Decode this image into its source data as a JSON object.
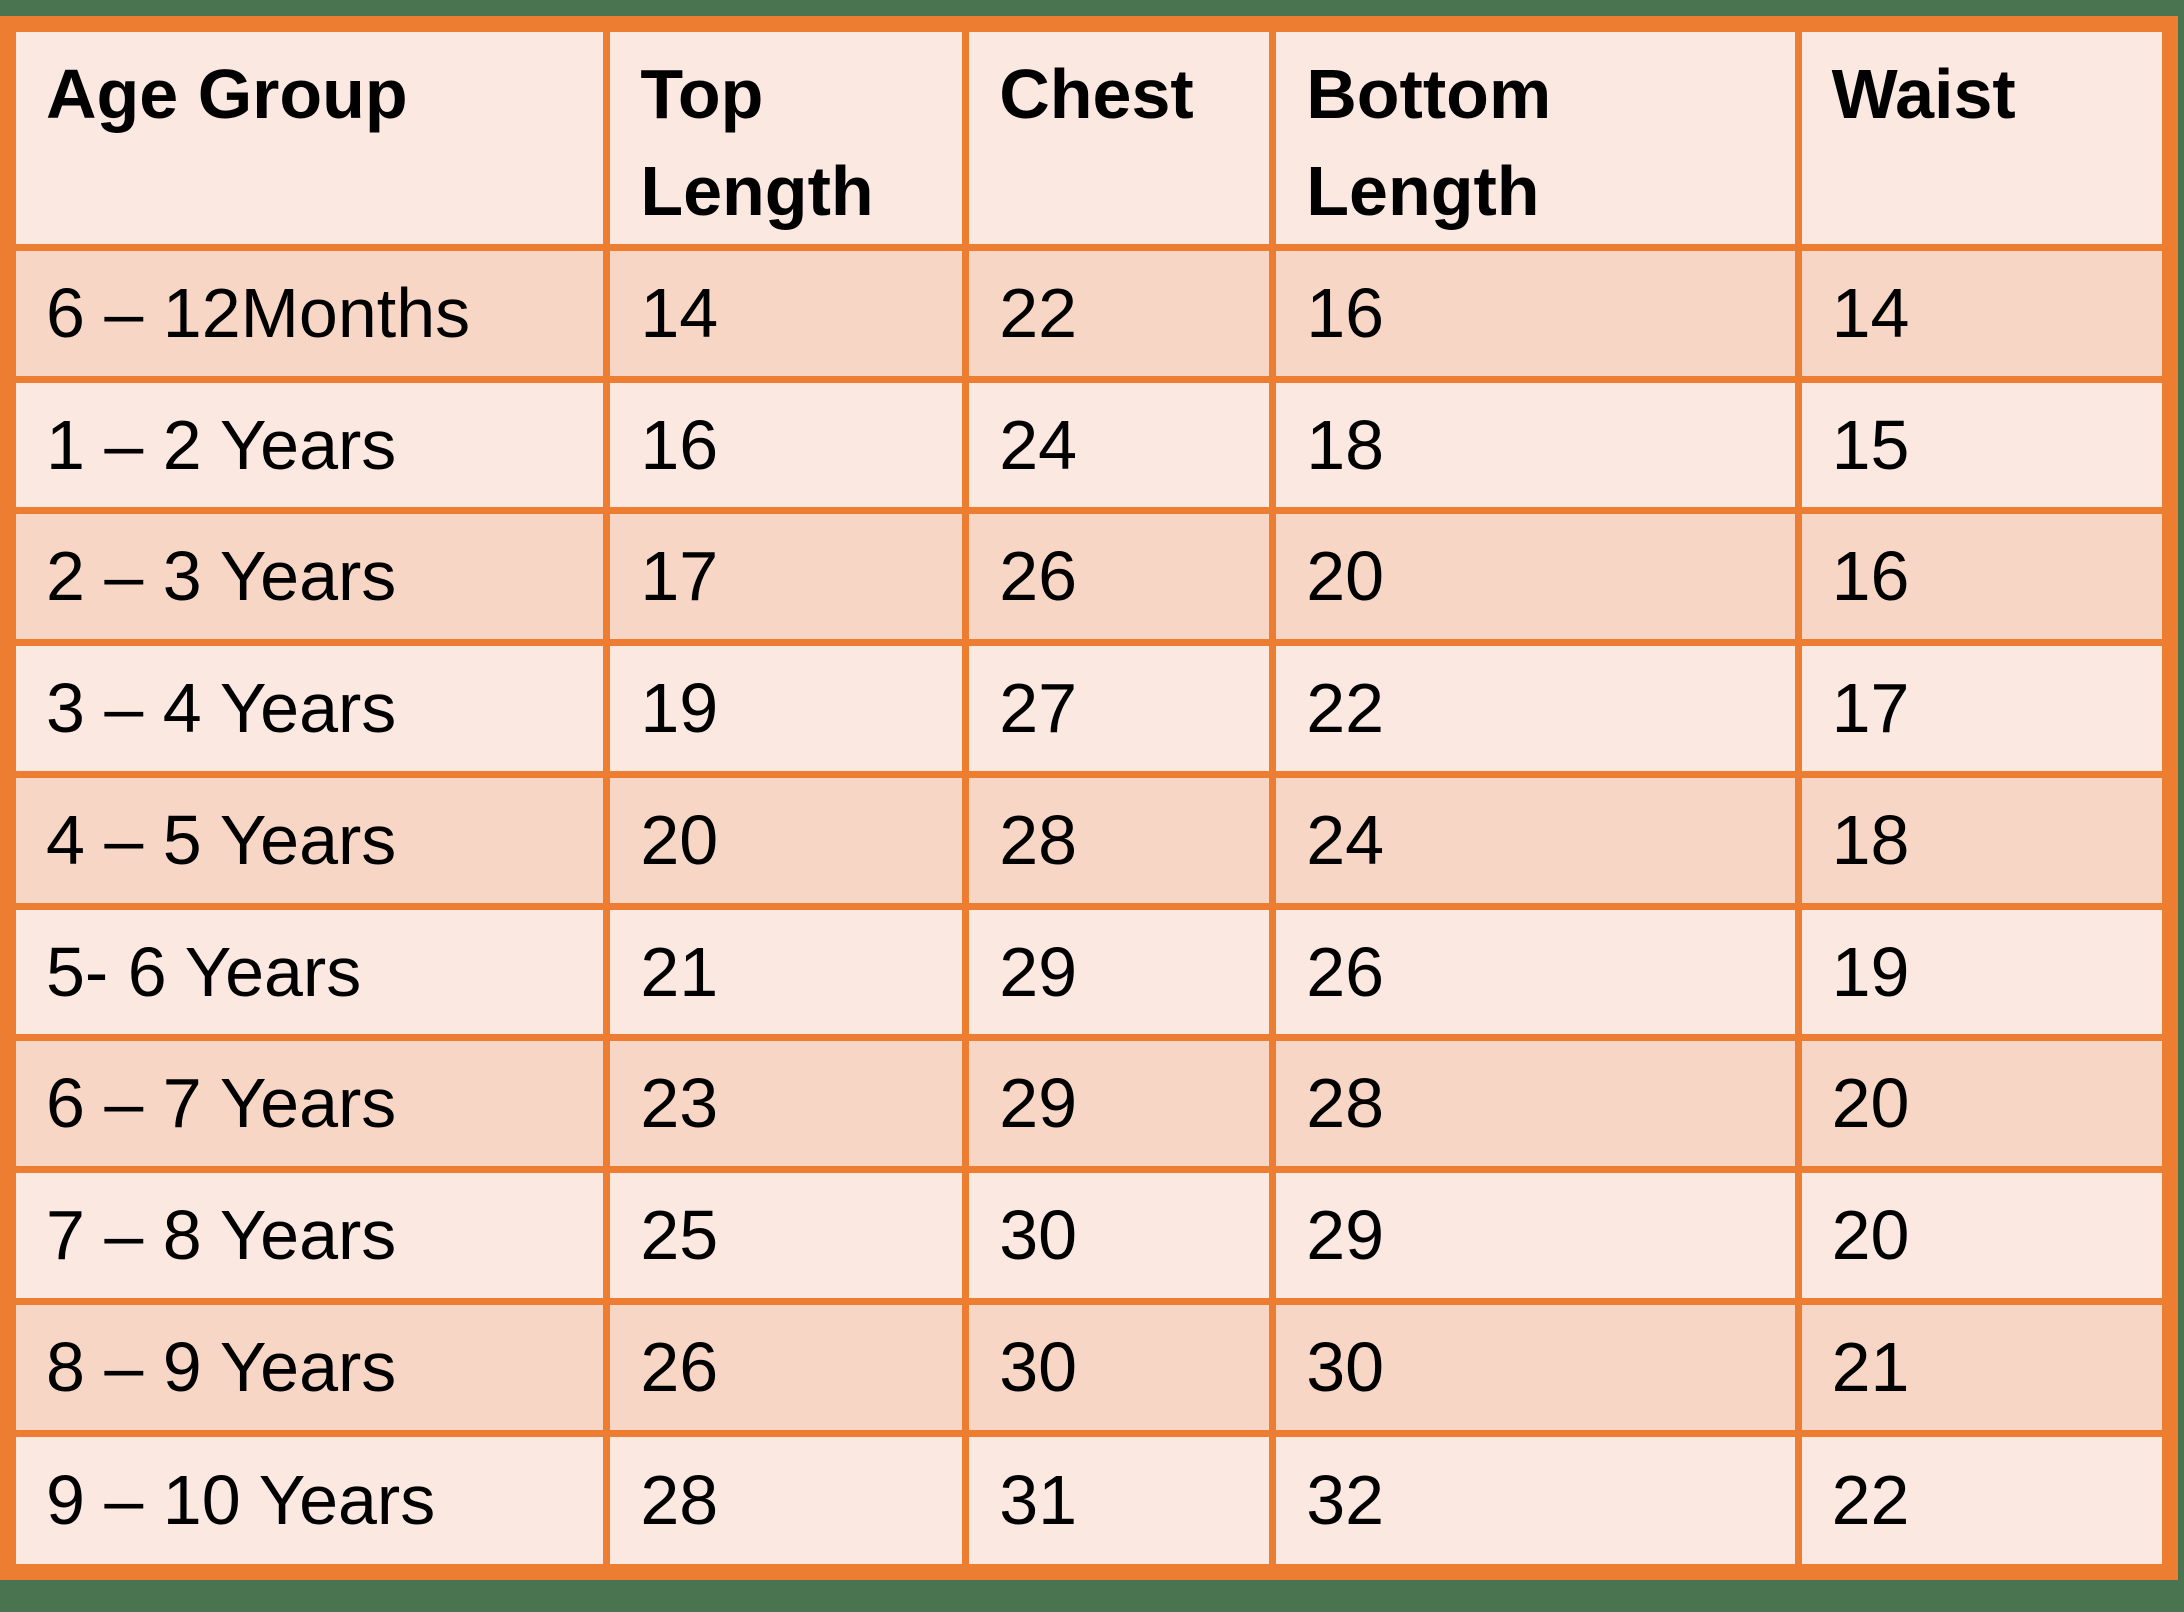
{
  "colors": {
    "background_green": "#4A7350",
    "border_orange": "#ED7D31",
    "band_light": "#FAE8E1",
    "band_dark": "#F7D6C5",
    "text": "#000000"
  },
  "table": {
    "columns": [
      {
        "key": "age_group",
        "label": "Age Group"
      },
      {
        "key": "top_length",
        "label": "Top Length"
      },
      {
        "key": "chest",
        "label": "Chest"
      },
      {
        "key": "bottom_length",
        "label": "Bottom Length"
      },
      {
        "key": "waist",
        "label": "Waist"
      }
    ],
    "rows": [
      {
        "cells": [
          "6 – 12Months",
          "14",
          "22",
          "16",
          "14"
        ]
      },
      {
        "cells": [
          "1 – 2 Years",
          "16",
          "24",
          "18",
          "15"
        ]
      },
      {
        "cells": [
          "2 – 3 Years",
          "17",
          "26",
          "20",
          "16"
        ]
      },
      {
        "cells": [
          "3 – 4 Years",
          "19",
          "27",
          "22",
          "17"
        ]
      },
      {
        "cells": [
          "4 – 5 Years",
          "20",
          "28",
          "24",
          "18"
        ]
      },
      {
        "cells": [
          "5- 6 Years",
          "21",
          "29",
          "26",
          "19"
        ]
      },
      {
        "cells": [
          "6 – 7 Years",
          "23",
          "29",
          "28",
          "20"
        ]
      },
      {
        "cells": [
          "7 – 8 Years",
          "25",
          "30",
          "29",
          "20"
        ]
      },
      {
        "cells": [
          "8 – 9 Years",
          "26",
          "30",
          "30",
          "21"
        ]
      },
      {
        "cells": [
          "9 – 10 Years",
          "28",
          "31",
          "32",
          "22"
        ]
      }
    ]
  }
}
